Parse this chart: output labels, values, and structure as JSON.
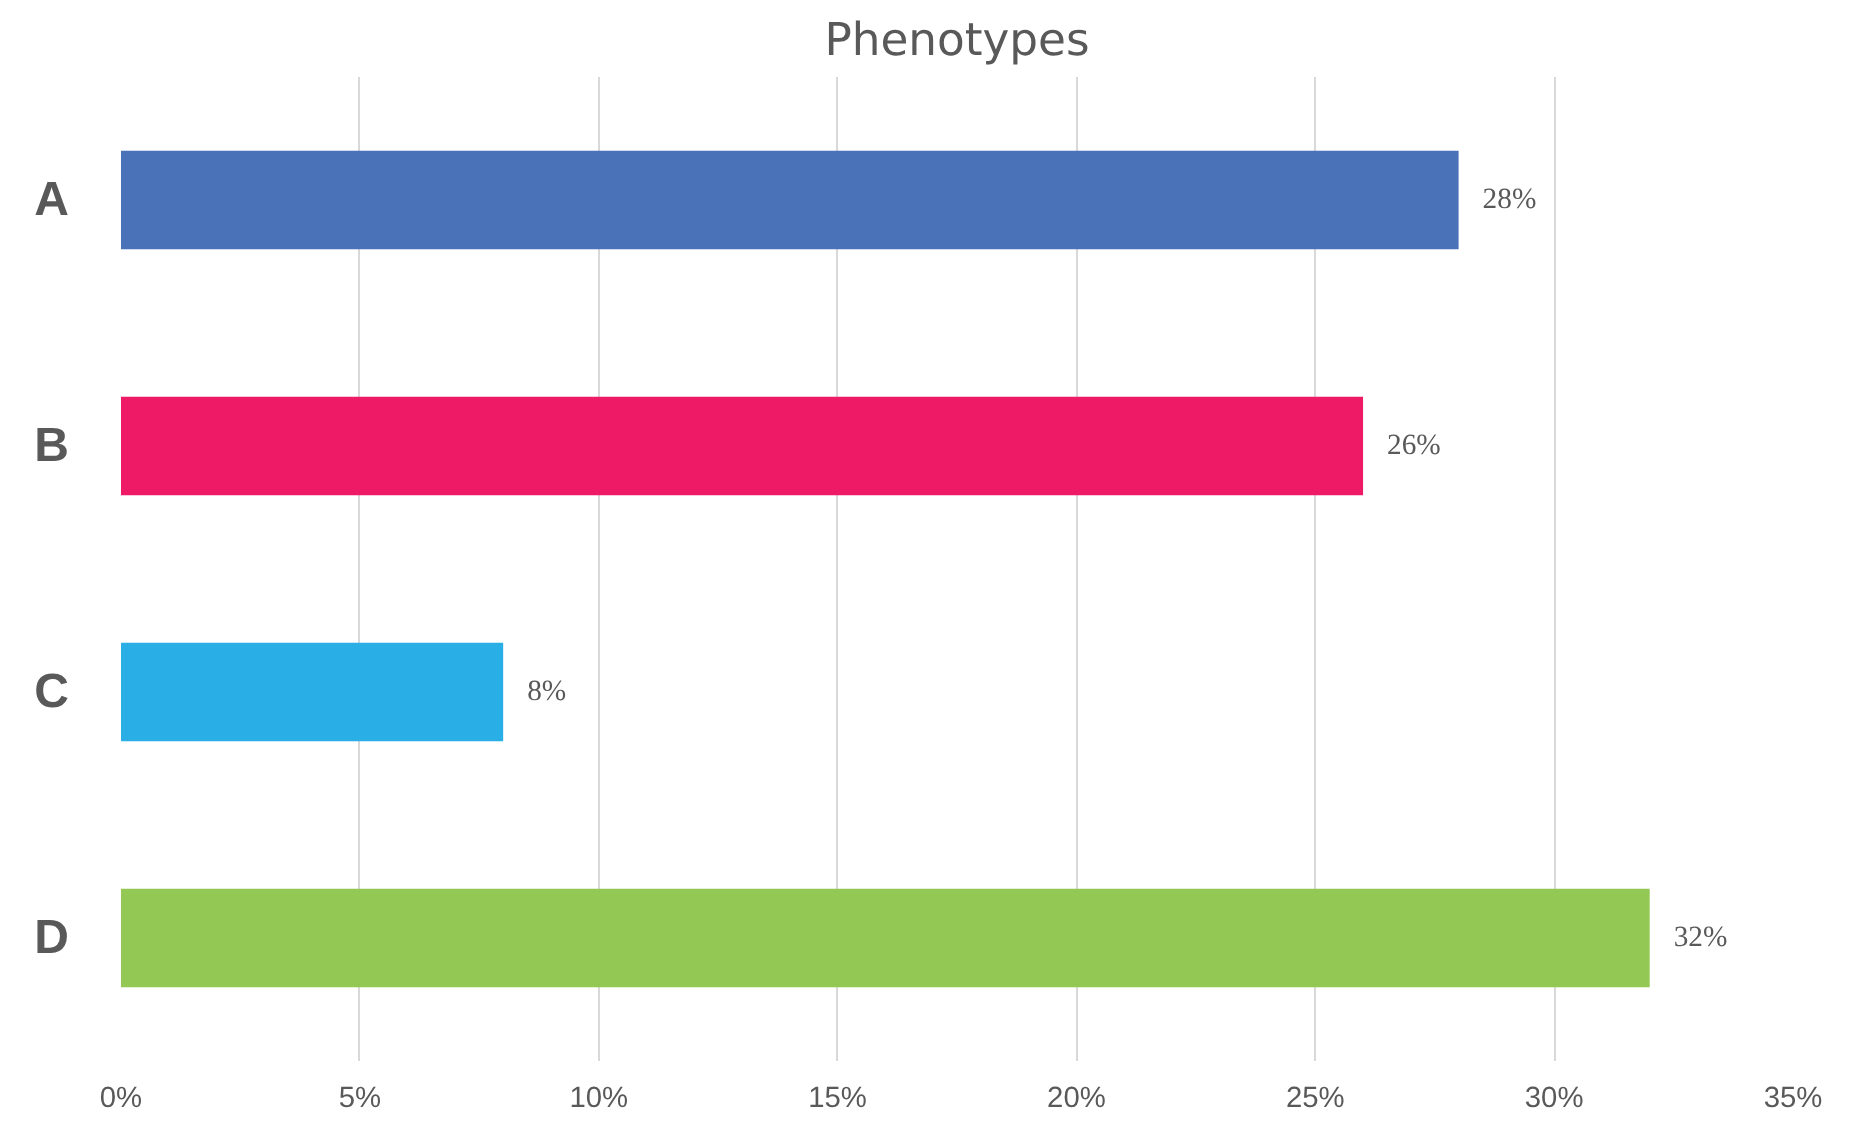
{
  "chart_data": {
    "type": "bar",
    "orientation": "horizontal",
    "title": "Phenotypes",
    "categories": [
      "A",
      "B",
      "C",
      "D"
    ],
    "values": [
      28,
      26,
      8,
      32
    ],
    "colors": [
      "#4a72b8",
      "#ee1a66",
      "#29aee6",
      "#92c853"
    ],
    "value_labels": [
      "28%",
      "26%",
      "8%",
      "32%"
    ],
    "xlim": [
      0,
      35
    ],
    "xticks": [
      {
        "value": 0,
        "label": "0%"
      },
      {
        "value": 5,
        "label": "5%"
      },
      {
        "value": 10,
        "label": "10%"
      },
      {
        "value": 15,
        "label": "15%"
      },
      {
        "value": 20,
        "label": "20%"
      },
      {
        "value": 25,
        "label": "25%"
      },
      {
        "value": 30,
        "label": "30%"
      },
      {
        "value": 35,
        "label": "35%"
      }
    ],
    "grid": "x"
  }
}
